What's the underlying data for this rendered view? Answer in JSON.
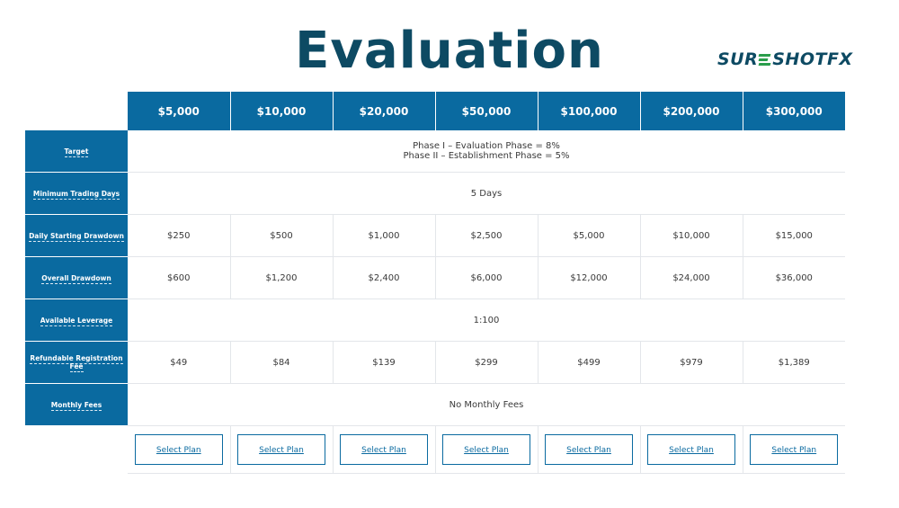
{
  "page": {
    "title": "Evaluation",
    "logo": {
      "prefix": "SUR",
      "suffix": "SHOTFX"
    }
  },
  "table": {
    "columns": [
      "$5,000",
      "$10,000",
      "$20,000",
      "$50,000",
      "$100,000",
      "$200,000",
      "$300,000"
    ],
    "rows": {
      "target": {
        "label": "Target",
        "line1": "Phase I – Evaluation Phase = 8%",
        "line2": "Phase II – Establishment Phase = 5%"
      },
      "min_days": {
        "label": "Minimum Trading Days",
        "value": "5 Days"
      },
      "daily_drawdown": {
        "label": "Daily Starting Drawdown",
        "values": [
          "$250",
          "$500",
          "$1,000",
          "$2,500",
          "$5,000",
          "$10,000",
          "$15,000"
        ]
      },
      "overall_drawdown": {
        "label": "Overall Drawdown",
        "values": [
          "$600",
          "$1,200",
          "$2,400",
          "$6,000",
          "$12,000",
          "$24,000",
          "$36,000"
        ]
      },
      "leverage": {
        "label": "Available Leverage",
        "value": "1:100"
      },
      "registration_fee": {
        "label": "Refundable Registration Fee",
        "values": [
          "$49",
          "$84",
          "$139",
          "$299",
          "$499",
          "$979",
          "$1,389"
        ]
      },
      "monthly_fees": {
        "label": "Monthly Fees",
        "value": "No Monthly Fees"
      }
    },
    "select_label": "Select Plan"
  },
  "colors": {
    "header_blue": "#0a6aa0",
    "title_navy": "#0d4a63",
    "logo_green": "#2a9d4b"
  }
}
